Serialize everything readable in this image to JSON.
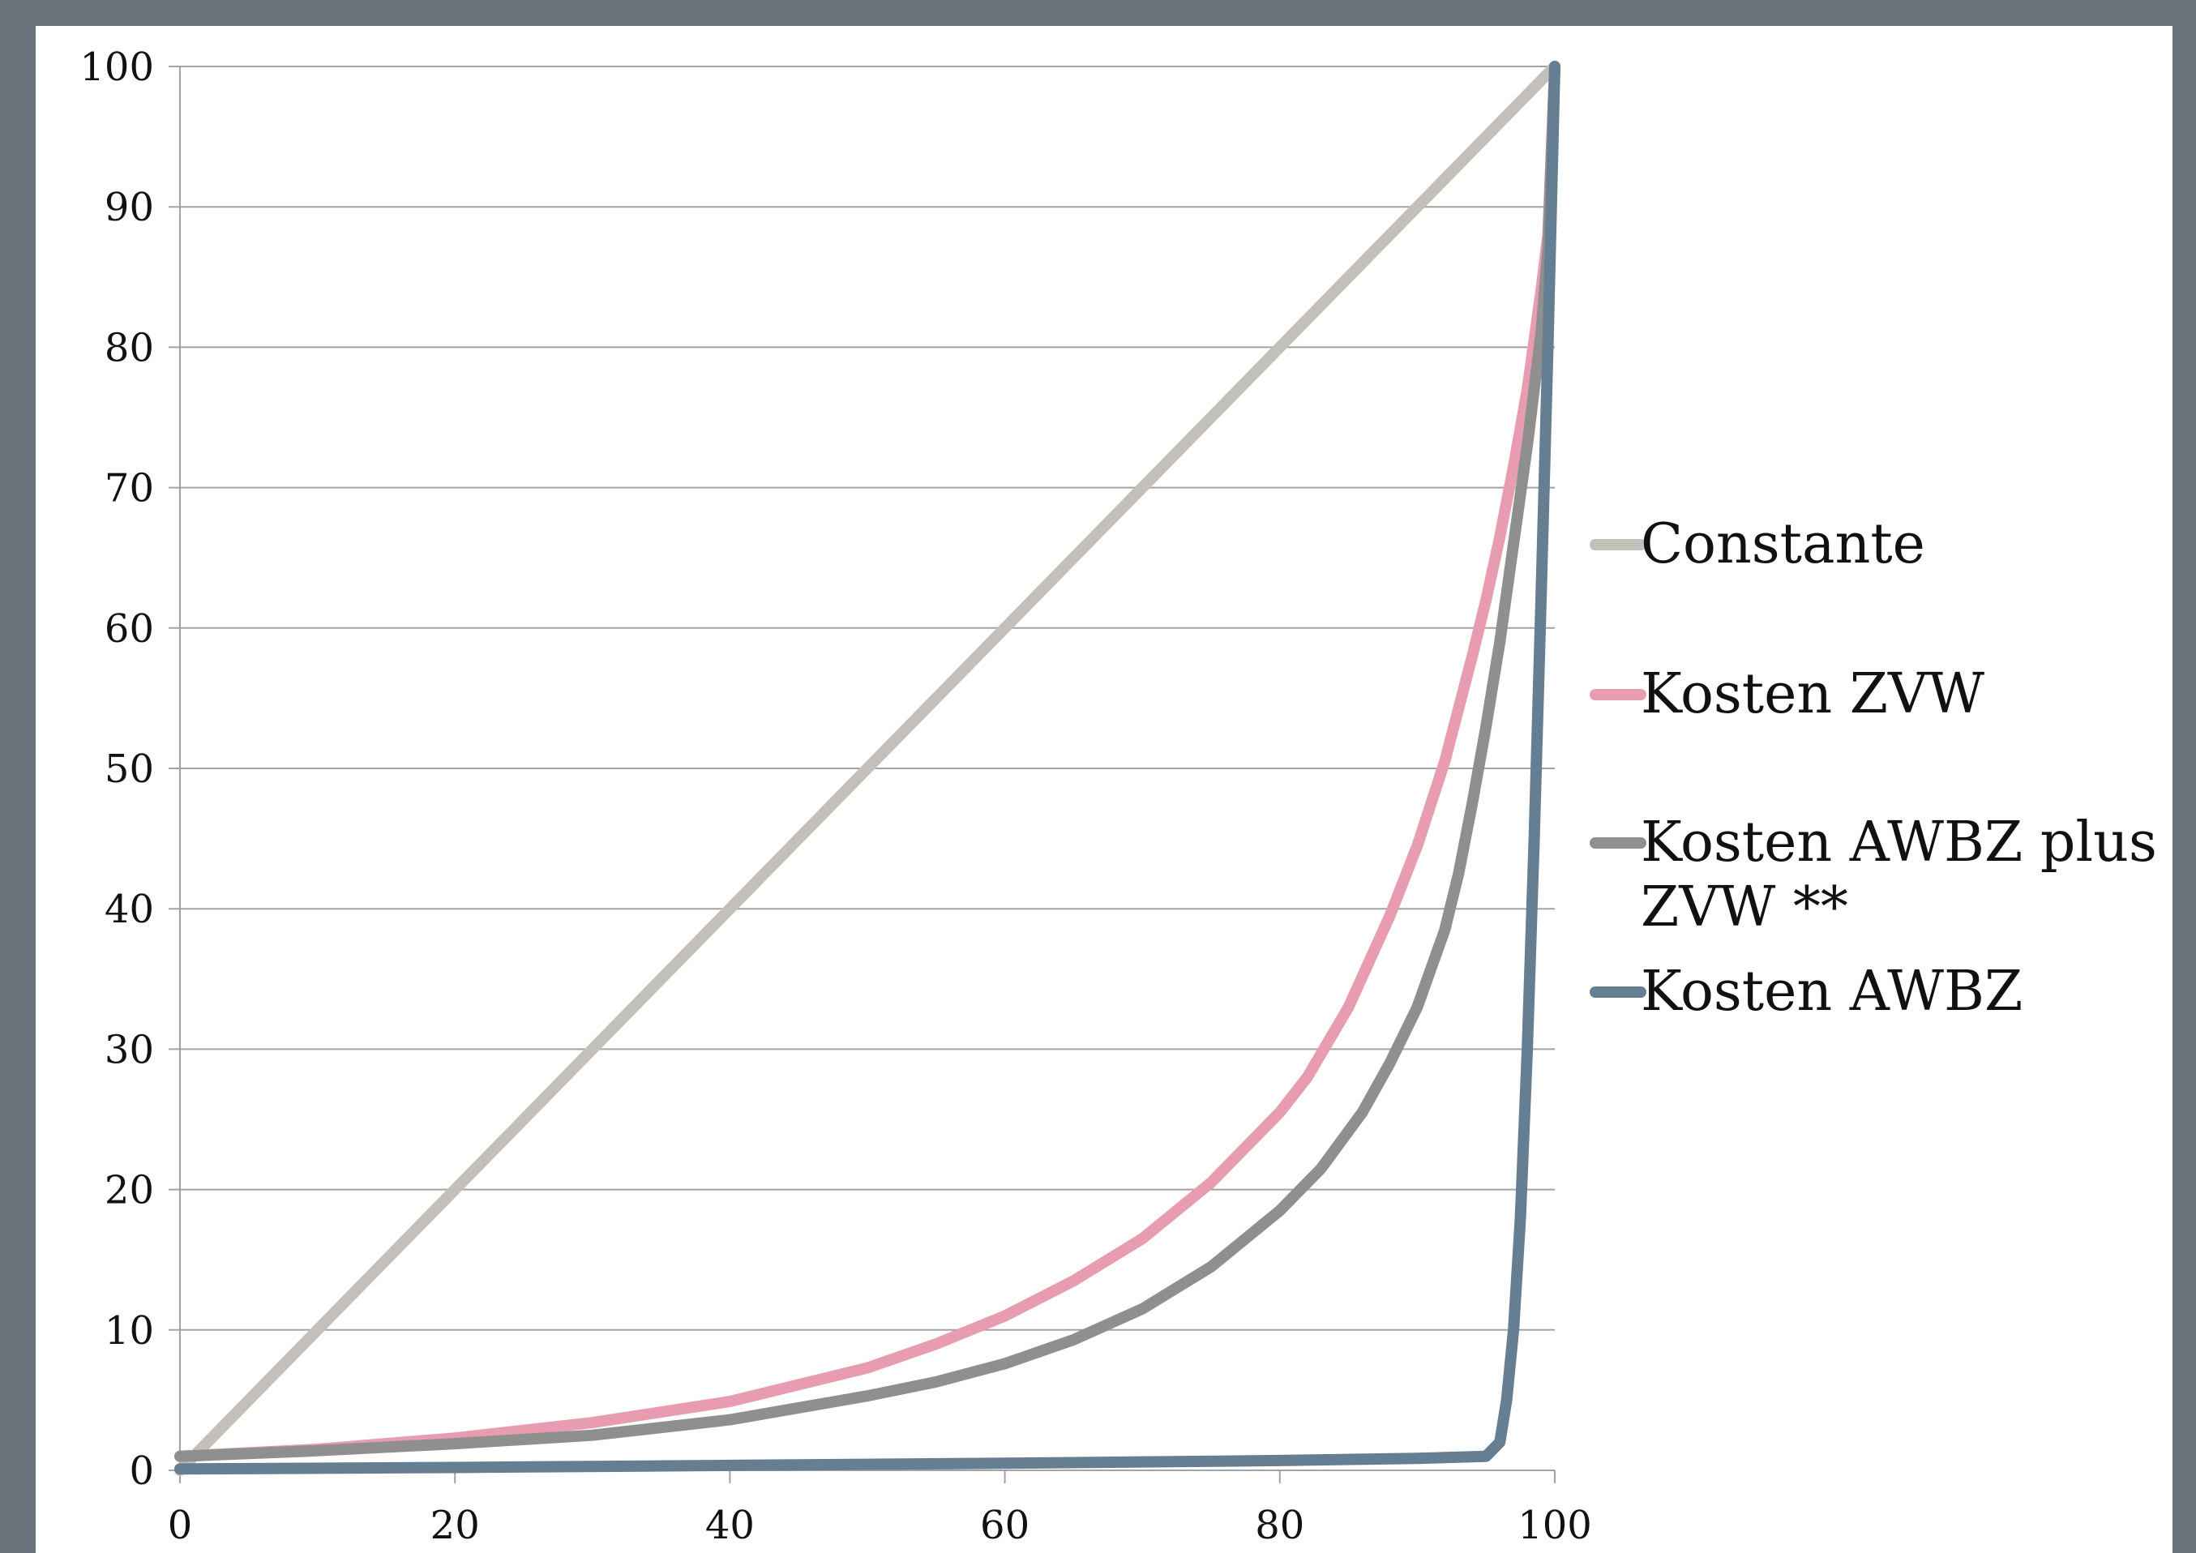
{
  "chart_data": {
    "type": "line",
    "title": "",
    "xlabel": "",
    "ylabel": "",
    "xlim": [
      0,
      100
    ],
    "ylim": [
      0,
      100
    ],
    "x_ticks": [
      "0",
      "20",
      "40",
      "60",
      "80",
      "100"
    ],
    "y_ticks": [
      "0",
      "10",
      "20",
      "30",
      "40",
      "50",
      "60",
      "70",
      "80",
      "90",
      "100"
    ],
    "grid": "horizontal",
    "legend_position": "right",
    "series": [
      {
        "name": "Constante",
        "color": "#c3c0ba",
        "x": [
          0,
          100
        ],
        "y": [
          0,
          100
        ]
      },
      {
        "name": "Kosten ZVW",
        "color": "#e89cb0",
        "x": [
          0,
          10,
          20,
          30,
          40,
          50,
          55,
          60,
          65,
          70,
          75,
          80,
          82,
          85,
          88,
          90,
          92,
          94,
          95,
          96,
          97,
          98,
          99,
          99.5,
          100
        ],
        "y": [
          1,
          1.5,
          2.3,
          3.4,
          4.9,
          7.3,
          9,
          11,
          13.5,
          16.5,
          20.5,
          25.5,
          28,
          33,
          39.5,
          44.5,
          50.5,
          58,
          62,
          66.5,
          71.5,
          77,
          84,
          88,
          100
        ]
      },
      {
        "name": "Kosten AWBZ plus\nZVW **",
        "color": "#8f8f8f",
        "x": [
          0,
          10,
          20,
          30,
          40,
          50,
          55,
          60,
          65,
          70,
          75,
          80,
          83,
          86,
          88,
          90,
          92,
          93,
          94,
          95,
          96,
          97,
          98,
          99,
          99.5,
          100
        ],
        "y": [
          1,
          1.4,
          1.9,
          2.5,
          3.6,
          5.3,
          6.3,
          7.6,
          9.3,
          11.5,
          14.5,
          18.5,
          21.5,
          25.5,
          29,
          33,
          38.5,
          42.5,
          47.5,
          53,
          59,
          66,
          73,
          81,
          87,
          100
        ]
      },
      {
        "name": "Kosten AWBZ",
        "color": "#667e91",
        "x": [
          0,
          20,
          40,
          60,
          80,
          90,
          95,
          96,
          96.5,
          97,
          97.5,
          98,
          98.5,
          99,
          99.5,
          100
        ],
        "y": [
          0.1,
          0.2,
          0.35,
          0.5,
          0.7,
          0.85,
          1,
          2,
          5,
          10,
          18,
          30,
          45,
          62,
          80,
          100
        ]
      }
    ]
  }
}
